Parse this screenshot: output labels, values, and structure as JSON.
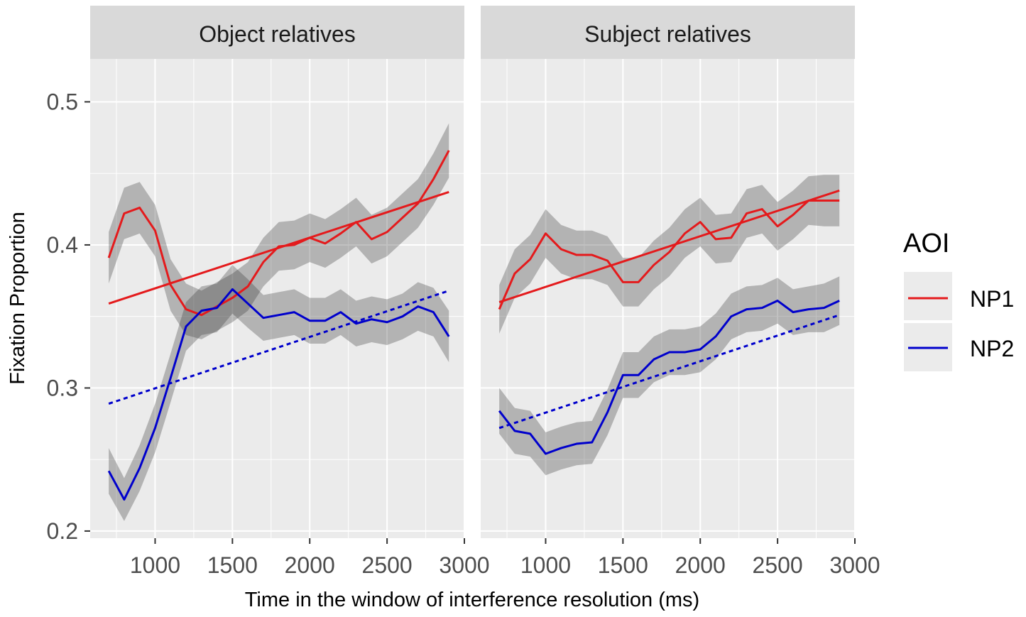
{
  "chart_data": {
    "type": "line",
    "xlabel": "Time in the window of interference resolution (ms)",
    "ylabel": "Fixation Proportion",
    "xlim": [
      580,
      3000
    ],
    "ylim": [
      0.195,
      0.53
    ],
    "xticks": [
      1000,
      1500,
      2000,
      2500,
      3000
    ],
    "yticks": [
      0.2,
      0.3,
      0.4,
      0.5
    ],
    "xtick_labels": [
      "1000",
      "1500",
      "2000",
      "2500",
      "3000"
    ],
    "ytick_labels": [
      "0.2",
      "0.3",
      "0.4",
      "0.5"
    ],
    "legend": {
      "title": "AOI",
      "position": "right",
      "entries": [
        {
          "label": "NP1",
          "color": "#e41a1c"
        },
        {
          "label": "NP2",
          "color": "#0000cc"
        }
      ]
    },
    "colors": {
      "NP1": "#e41a1c",
      "NP2": "#0000cc",
      "ribbon": "#333333",
      "panel_bg": "#ebebeb",
      "strip_bg": "#d9d9d9"
    },
    "panels": [
      {
        "title": "Object relatives",
        "series": [
          {
            "name": "NP1",
            "x": [
              700,
              800,
              900,
              1000,
              1100,
              1200,
              1300,
              1400,
              1500,
              1600,
              1700,
              1800,
              1900,
              2000,
              2100,
              2200,
              2300,
              2400,
              2500,
              2600,
              2700,
              2800,
              2900
            ],
            "y": [
              0.391,
              0.422,
              0.426,
              0.41,
              0.372,
              0.355,
              0.351,
              0.357,
              0.363,
              0.371,
              0.388,
              0.399,
              0.4,
              0.405,
              0.401,
              0.408,
              0.416,
              0.404,
              0.409,
              0.419,
              0.429,
              0.446,
              0.466
            ],
            "se": [
              0.018,
              0.018,
              0.018,
              0.018,
              0.018,
              0.018,
              0.017,
              0.017,
              0.017,
              0.017,
              0.017,
              0.017,
              0.017,
              0.017,
              0.017,
              0.017,
              0.017,
              0.017,
              0.017,
              0.017,
              0.017,
              0.018,
              0.019
            ],
            "fit": [
              0.359,
              0.437
            ]
          },
          {
            "name": "NP2",
            "x": [
              700,
              800,
              900,
              1000,
              1100,
              1200,
              1300,
              1400,
              1500,
              1600,
              1700,
              1800,
              1900,
              2000,
              2100,
              2200,
              2300,
              2400,
              2500,
              2600,
              2700,
              2800,
              2900
            ],
            "y": [
              0.242,
              0.222,
              0.244,
              0.272,
              0.307,
              0.343,
              0.354,
              0.356,
              0.369,
              0.359,
              0.349,
              0.351,
              0.353,
              0.347,
              0.347,
              0.353,
              0.345,
              0.348,
              0.346,
              0.35,
              0.357,
              0.353,
              0.336
            ],
            "se": [
              0.016,
              0.015,
              0.016,
              0.017,
              0.017,
              0.017,
              0.017,
              0.017,
              0.017,
              0.017,
              0.016,
              0.016,
              0.016,
              0.016,
              0.016,
              0.016,
              0.016,
              0.016,
              0.016,
              0.016,
              0.017,
              0.017,
              0.018
            ],
            "fit": [
              0.289,
              0.368
            ],
            "fit_dash": true
          }
        ]
      },
      {
        "title": "Subject relatives",
        "series": [
          {
            "name": "NP1",
            "x": [
              700,
              800,
              900,
              1000,
              1100,
              1200,
              1300,
              1400,
              1500,
              1600,
              1700,
              1800,
              1900,
              2000,
              2100,
              2200,
              2300,
              2400,
              2500,
              2600,
              2700,
              2800,
              2900
            ],
            "y": [
              0.355,
              0.38,
              0.39,
              0.408,
              0.397,
              0.393,
              0.393,
              0.389,
              0.374,
              0.374,
              0.386,
              0.395,
              0.408,
              0.416,
              0.404,
              0.405,
              0.422,
              0.425,
              0.413,
              0.421,
              0.431,
              0.431,
              0.431
            ],
            "se": [
              0.017,
              0.017,
              0.017,
              0.017,
              0.017,
              0.017,
              0.017,
              0.017,
              0.017,
              0.017,
              0.017,
              0.017,
              0.017,
              0.017,
              0.017,
              0.017,
              0.017,
              0.017,
              0.017,
              0.017,
              0.017,
              0.018,
              0.018
            ],
            "fit": [
              0.36,
              0.438
            ]
          },
          {
            "name": "NP2",
            "x": [
              700,
              800,
              900,
              1000,
              1100,
              1200,
              1300,
              1400,
              1500,
              1600,
              1700,
              1800,
              1900,
              2000,
              2100,
              2200,
              2300,
              2400,
              2500,
              2600,
              2700,
              2800,
              2900
            ],
            "y": [
              0.284,
              0.27,
              0.268,
              0.254,
              0.258,
              0.261,
              0.262,
              0.283,
              0.309,
              0.309,
              0.32,
              0.325,
              0.325,
              0.327,
              0.336,
              0.35,
              0.355,
              0.356,
              0.361,
              0.353,
              0.355,
              0.356,
              0.361
            ],
            "se": [
              0.016,
              0.016,
              0.016,
              0.015,
              0.015,
              0.015,
              0.015,
              0.016,
              0.016,
              0.016,
              0.016,
              0.016,
              0.016,
              0.016,
              0.016,
              0.016,
              0.016,
              0.016,
              0.016,
              0.016,
              0.016,
              0.017,
              0.017
            ],
            "fit": [
              0.272,
              0.351
            ],
            "fit_dash": true
          }
        ]
      }
    ]
  }
}
